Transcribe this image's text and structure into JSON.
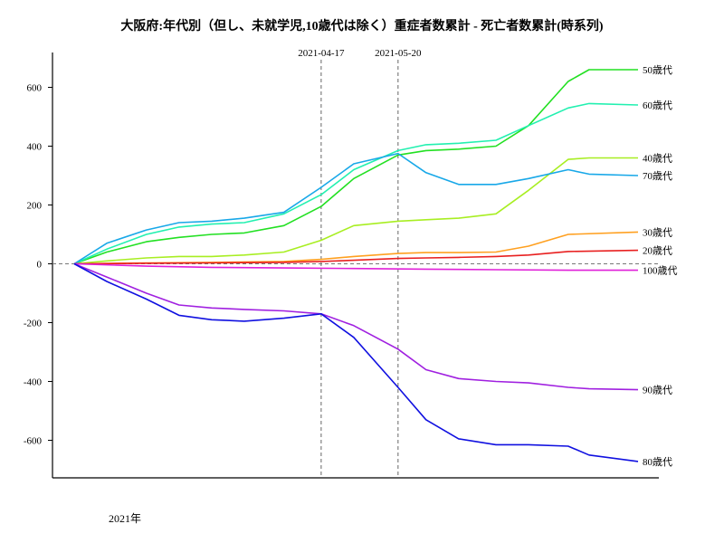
{
  "chart_data": {
    "type": "line",
    "title": "大阪府:年代別（但し、未就学児,10歳代は除く）重症者数累計 - 死亡者数累計(時系列)",
    "xlabel": "2021年",
    "ylabel": "",
    "y_ticks": [
      "600",
      "400",
      "200",
      "0",
      "-200",
      "-400",
      "-600"
    ],
    "ylim": [
      -730,
      720
    ],
    "x_range": [
      "2021-01-01",
      "2021-08-31"
    ],
    "grid": false,
    "legend": "series labels at right end of each line",
    "reference_lines": [
      {
        "date": "2021-04-17",
        "label": "2021-04-17",
        "style": "dashed"
      },
      {
        "date": "2021-05-20",
        "label": "2021-05-20",
        "style": "dashed"
      }
    ],
    "zero_line": {
      "value": 0,
      "style": "dashed"
    },
    "series": [
      {
        "name": "50歳代",
        "color": "#22e022",
        "x": [
          "2021-01-01",
          "2021-01-15",
          "2021-02-01",
          "2021-02-15",
          "2021-03-01",
          "2021-03-15",
          "2021-04-01",
          "2021-04-17",
          "2021-05-01",
          "2021-05-20",
          "2021-06-01",
          "2021-06-15",
          "2021-07-01",
          "2021-07-15",
          "2021-08-01",
          "2021-08-10",
          "2021-08-31"
        ],
        "values": [
          0,
          40,
          75,
          90,
          100,
          105,
          130,
          195,
          290,
          370,
          385,
          390,
          400,
          470,
          620,
          660,
          660
        ]
      },
      {
        "name": "60歳代",
        "color": "#22f0b0",
        "x": [
          "2021-01-01",
          "2021-01-15",
          "2021-02-01",
          "2021-02-15",
          "2021-03-01",
          "2021-03-15",
          "2021-04-01",
          "2021-04-17",
          "2021-05-01",
          "2021-05-20",
          "2021-06-01",
          "2021-06-15",
          "2021-07-01",
          "2021-07-15",
          "2021-08-01",
          "2021-08-10",
          "2021-08-31"
        ],
        "values": [
          0,
          50,
          100,
          125,
          135,
          140,
          170,
          235,
          320,
          385,
          405,
          410,
          420,
          470,
          530,
          545,
          540
        ]
      },
      {
        "name": "40歳代",
        "color": "#a8ee22",
        "x": [
          "2021-01-01",
          "2021-01-15",
          "2021-02-01",
          "2021-02-15",
          "2021-03-01",
          "2021-03-15",
          "2021-04-01",
          "2021-04-17",
          "2021-05-01",
          "2021-05-20",
          "2021-06-01",
          "2021-06-15",
          "2021-07-01",
          "2021-07-15",
          "2021-08-01",
          "2021-08-10",
          "2021-08-31"
        ],
        "values": [
          0,
          10,
          20,
          25,
          25,
          30,
          40,
          80,
          130,
          145,
          150,
          155,
          170,
          250,
          355,
          360,
          360
        ]
      },
      {
        "name": "70歳代",
        "color": "#18a8e8",
        "x": [
          "2021-01-01",
          "2021-01-15",
          "2021-02-01",
          "2021-02-15",
          "2021-03-01",
          "2021-03-15",
          "2021-04-01",
          "2021-04-17",
          "2021-05-01",
          "2021-05-20",
          "2021-06-01",
          "2021-06-15",
          "2021-07-01",
          "2021-07-15",
          "2021-08-01",
          "2021-08-10",
          "2021-08-31"
        ],
        "values": [
          0,
          70,
          115,
          140,
          145,
          155,
          175,
          260,
          340,
          375,
          310,
          270,
          270,
          290,
          320,
          305,
          300
        ]
      },
      {
        "name": "30歳代",
        "color": "#ffa020",
        "x": [
          "2021-01-01",
          "2021-02-01",
          "2021-03-01",
          "2021-04-01",
          "2021-04-17",
          "2021-05-01",
          "2021-05-20",
          "2021-06-01",
          "2021-06-15",
          "2021-07-01",
          "2021-07-15",
          "2021-08-01",
          "2021-08-31"
        ],
        "values": [
          0,
          3,
          5,
          8,
          15,
          25,
          35,
          38,
          38,
          40,
          60,
          100,
          108
        ]
      },
      {
        "name": "20歳代",
        "color": "#e82020",
        "x": [
          "2021-01-01",
          "2021-02-01",
          "2021-03-01",
          "2021-04-01",
          "2021-04-17",
          "2021-05-01",
          "2021-05-20",
          "2021-06-01",
          "2021-06-15",
          "2021-07-01",
          "2021-07-15",
          "2021-08-01",
          "2021-08-31"
        ],
        "values": [
          0,
          2,
          3,
          5,
          8,
          12,
          18,
          20,
          22,
          25,
          30,
          42,
          46
        ]
      },
      {
        "name": "100歳代",
        "color": "#e020d8",
        "x": [
          "2021-01-01",
          "2021-02-01",
          "2021-03-01",
          "2021-04-01",
          "2021-05-01",
          "2021-06-01",
          "2021-07-01",
          "2021-08-01",
          "2021-08-31"
        ],
        "values": [
          0,
          -8,
          -12,
          -14,
          -16,
          -18,
          -20,
          -22,
          -22
        ]
      },
      {
        "name": "90歳代",
        "color": "#a020e0",
        "x": [
          "2021-01-01",
          "2021-01-15",
          "2021-02-01",
          "2021-02-15",
          "2021-03-01",
          "2021-03-15",
          "2021-04-01",
          "2021-04-17",
          "2021-05-01",
          "2021-05-20",
          "2021-06-01",
          "2021-06-15",
          "2021-07-01",
          "2021-07-15",
          "2021-08-01",
          "2021-08-10",
          "2021-08-31"
        ],
        "values": [
          0,
          -45,
          -100,
          -140,
          -150,
          -155,
          -160,
          -170,
          -210,
          -290,
          -360,
          -390,
          -400,
          -405,
          -420,
          -425,
          -428
        ]
      },
      {
        "name": "80歳代",
        "color": "#1010e0",
        "x": [
          "2021-01-01",
          "2021-01-15",
          "2021-02-01",
          "2021-02-15",
          "2021-03-01",
          "2021-03-15",
          "2021-04-01",
          "2021-04-17",
          "2021-05-01",
          "2021-05-20",
          "2021-06-01",
          "2021-06-15",
          "2021-07-01",
          "2021-07-15",
          "2021-08-01",
          "2021-08-10",
          "2021-08-31"
        ],
        "values": [
          0,
          -60,
          -120,
          -175,
          -190,
          -195,
          -185,
          -170,
          -250,
          -420,
          -530,
          -595,
          -615,
          -615,
          -620,
          -650,
          -672
        ]
      }
    ]
  }
}
